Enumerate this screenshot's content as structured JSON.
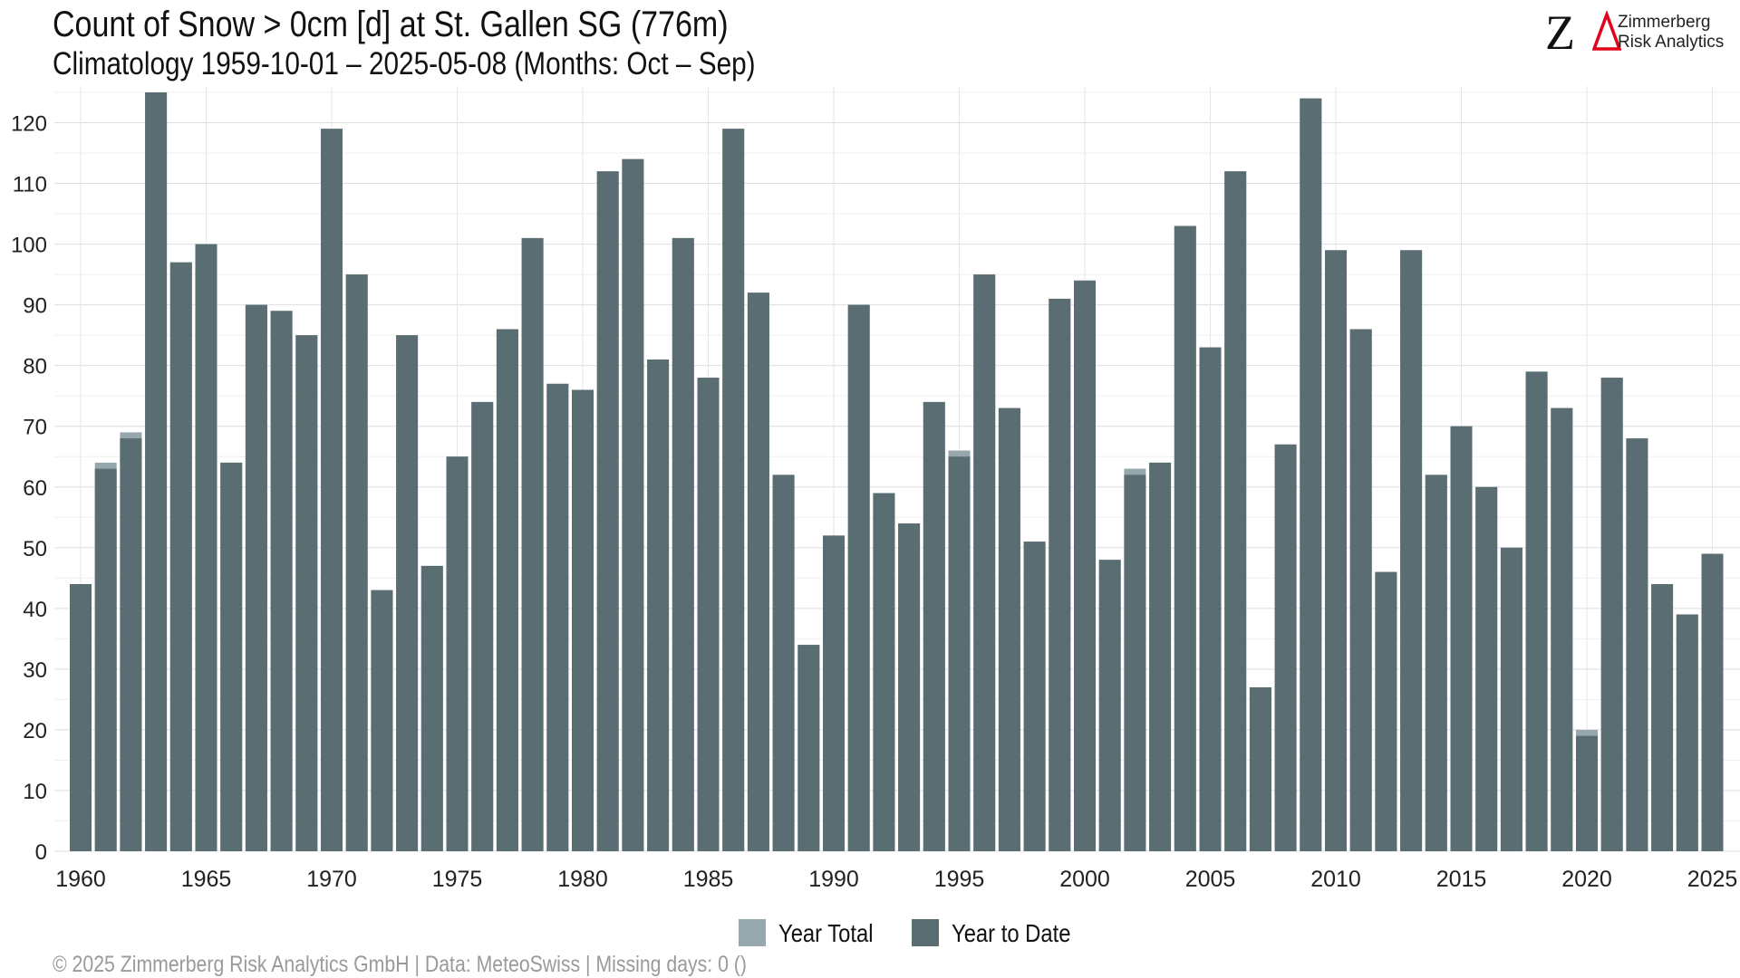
{
  "header": {
    "title": "Count of Snow > 0cm [d] at St. Gallen  SG (776m)",
    "subtitle": "Climatology 1959-10-01 – 2025-05-08 (Months: Oct – Sep)"
  },
  "logo": {
    "mark": "Z",
    "line1": "Zimmerberg",
    "line2": "Risk Analytics",
    "delta_color": "#e3001b"
  },
  "footer": {
    "text": "©  2025 Zimmerberg Risk Analytics GmbH | Data: MeteoSwiss | Missing days: 0 ()"
  },
  "chart_data": {
    "type": "bar",
    "title": "Count of Snow > 0cm [d] at St. Gallen  SG (776m)",
    "xlabel": "",
    "ylabel": "",
    "ylim": [
      0,
      125
    ],
    "yticks": [
      0,
      10,
      20,
      30,
      40,
      50,
      60,
      70,
      80,
      90,
      100,
      110,
      120
    ],
    "xticks": [
      1960,
      1965,
      1970,
      1975,
      1980,
      1985,
      1990,
      1995,
      2000,
      2005,
      2010,
      2015,
      2020,
      2025
    ],
    "grid": true,
    "legend_position": "bottom",
    "colors": {
      "year_total": "#96a8ae",
      "year_to_date": "#5a6d73"
    },
    "categories": [
      1960,
      1961,
      1962,
      1963,
      1964,
      1965,
      1966,
      1967,
      1968,
      1969,
      1970,
      1971,
      1972,
      1973,
      1974,
      1975,
      1976,
      1977,
      1978,
      1979,
      1980,
      1981,
      1982,
      1983,
      1984,
      1985,
      1986,
      1987,
      1988,
      1989,
      1990,
      1991,
      1992,
      1993,
      1994,
      1995,
      1996,
      1997,
      1998,
      1999,
      2000,
      2001,
      2002,
      2003,
      2004,
      2005,
      2006,
      2007,
      2008,
      2009,
      2010,
      2011,
      2012,
      2013,
      2014,
      2015,
      2016,
      2017,
      2018,
      2019,
      2020,
      2021,
      2022,
      2023,
      2024,
      2025
    ],
    "series": [
      {
        "name": "Year Total",
        "values": [
          44,
          64,
          69,
          125,
          97,
          100,
          64,
          90,
          89,
          85,
          119,
          95,
          43,
          85,
          47,
          65,
          74,
          86,
          101,
          77,
          76,
          112,
          114,
          81,
          101,
          78,
          119,
          92,
          62,
          34,
          52,
          90,
          59,
          54,
          74,
          66,
          95,
          73,
          51,
          91,
          94,
          48,
          63,
          64,
          103,
          83,
          112,
          27,
          67,
          124,
          99,
          86,
          46,
          99,
          62,
          70,
          60,
          50,
          79,
          73,
          20,
          78,
          68,
          44,
          39,
          49
        ]
      },
      {
        "name": "Year to Date",
        "values": [
          44,
          63,
          68,
          125,
          97,
          100,
          64,
          90,
          89,
          85,
          119,
          95,
          43,
          85,
          47,
          65,
          74,
          86,
          101,
          77,
          76,
          112,
          114,
          81,
          101,
          78,
          119,
          92,
          62,
          34,
          52,
          90,
          59,
          54,
          74,
          65,
          95,
          73,
          51,
          91,
          94,
          48,
          62,
          64,
          103,
          83,
          112,
          27,
          67,
          124,
          99,
          86,
          46,
          99,
          62,
          70,
          60,
          50,
          79,
          73,
          19,
          78,
          68,
          44,
          39,
          49
        ]
      }
    ]
  }
}
